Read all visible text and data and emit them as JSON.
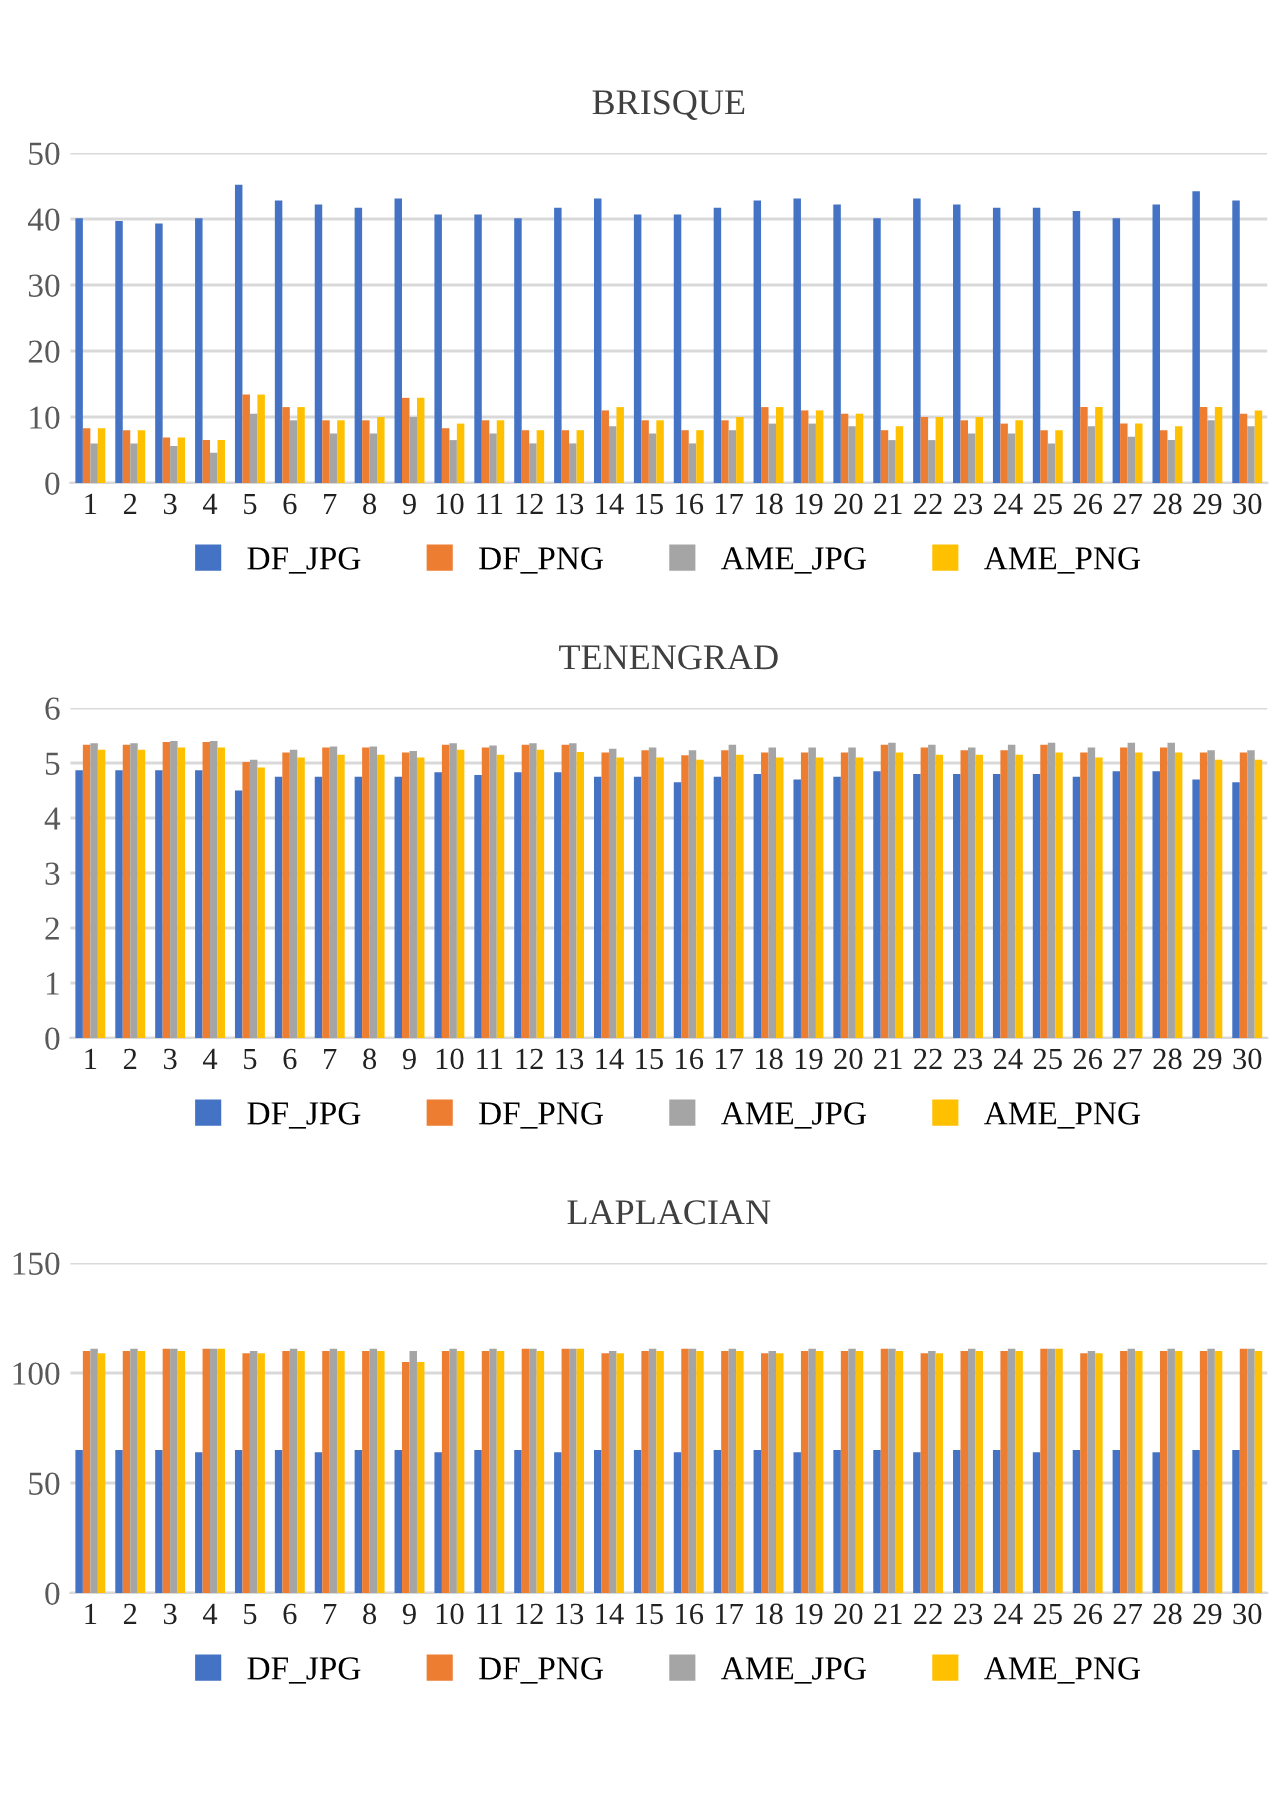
{
  "chart_data": [
    {
      "type": "bar",
      "title": "BRISQUE",
      "categories": [
        "1",
        "2",
        "3",
        "4",
        "5",
        "6",
        "7",
        "8",
        "9",
        "10",
        "11",
        "12",
        "13",
        "14",
        "15",
        "16",
        "17",
        "18",
        "19",
        "20",
        "21",
        "22",
        "23",
        "24",
        "25",
        "26",
        "27",
        "28",
        "29",
        "30"
      ],
      "ylim": [
        0,
        50
      ],
      "yticks": [
        0,
        10,
        20,
        30,
        40,
        50
      ],
      "grid": "y",
      "legend": "bottom",
      "series": [
        {
          "name": "DF_JPG",
          "color": "#4472c4",
          "values": [
            40.1,
            39.7,
            39.3,
            40.1,
            45.2,
            42.8,
            42.2,
            41.7,
            43.1,
            40.7,
            40.7,
            40.1,
            41.7,
            43.1,
            40.7,
            40.7,
            41.7,
            42.8,
            43.1,
            42.2,
            40.1,
            43.1,
            42.2,
            41.7,
            41.7,
            41.2,
            40.1,
            42.2,
            44.2,
            42.8
          ]
        },
        {
          "name": "DF_PNG",
          "color": "#ed7d31",
          "values": [
            8.3,
            8,
            6.9,
            6.5,
            13.4,
            11.5,
            9.5,
            9.5,
            12.9,
            8.3,
            9.5,
            8,
            8,
            11,
            9.5,
            8,
            9.5,
            11.5,
            11,
            10.5,
            8,
            10,
            9.5,
            9,
            8,
            11.5,
            9,
            8,
            11.5,
            10.5
          ]
        },
        {
          "name": "AME_JPG",
          "color": "#a5a5a5",
          "values": [
            6,
            6,
            5.6,
            4.6,
            10.5,
            9.5,
            7.5,
            7.5,
            10,
            6.5,
            7.5,
            6,
            6,
            8.6,
            7.5,
            6,
            8,
            9,
            9,
            8.6,
            6.5,
            6.5,
            7.5,
            7.5,
            6,
            8.6,
            7,
            6.5,
            9.5,
            8.6
          ]
        },
        {
          "name": "AME_PNG",
          "color": "#ffc000",
          "values": [
            8.3,
            8,
            6.9,
            6.5,
            13.4,
            11.5,
            9.5,
            10,
            12.9,
            9,
            9.5,
            8,
            8,
            11.5,
            9.5,
            8,
            10,
            11.5,
            11,
            10.5,
            8.6,
            10,
            10,
            9.5,
            8,
            11.5,
            9,
            8.6,
            11.5,
            11
          ]
        }
      ]
    },
    {
      "type": "bar",
      "title": "TENENGRAD",
      "categories": [
        "1",
        "2",
        "3",
        "4",
        "5",
        "6",
        "7",
        "8",
        "9",
        "10",
        "11",
        "12",
        "13",
        "14",
        "15",
        "16",
        "17",
        "18",
        "19",
        "20",
        "21",
        "22",
        "23",
        "24",
        "25",
        "26",
        "27",
        "28",
        "29",
        "30"
      ],
      "ylim": [
        0,
        6
      ],
      "yticks": [
        0,
        1,
        2,
        3,
        4,
        5,
        6
      ],
      "grid": "y",
      "legend": "bottom",
      "series": [
        {
          "name": "DF_JPG",
          "color": "#4472c4",
          "values": [
            4.87,
            4.87,
            4.87,
            4.87,
            4.5,
            4.75,
            4.75,
            4.75,
            4.75,
            4.83,
            4.78,
            4.83,
            4.83,
            4.75,
            4.75,
            4.65,
            4.75,
            4.8,
            4.7,
            4.75,
            4.85,
            4.8,
            4.8,
            4.8,
            4.8,
            4.75,
            4.85,
            4.85,
            4.7,
            4.65
          ]
        },
        {
          "name": "DF_PNG",
          "color": "#ed7d31",
          "values": [
            5.33,
            5.33,
            5.38,
            5.38,
            5.02,
            5.19,
            5.28,
            5.28,
            5.19,
            5.33,
            5.28,
            5.33,
            5.33,
            5.19,
            5.23,
            5.14,
            5.23,
            5.19,
            5.19,
            5.19,
            5.33,
            5.28,
            5.23,
            5.23,
            5.33,
            5.19,
            5.28,
            5.28,
            5.19,
            5.19
          ]
        },
        {
          "name": "AME_JPG",
          "color": "#a5a5a5",
          "values": [
            5.36,
            5.36,
            5.4,
            5.4,
            5.06,
            5.24,
            5.3,
            5.3,
            5.22,
            5.36,
            5.32,
            5.36,
            5.36,
            5.26,
            5.28,
            5.23,
            5.33,
            5.28,
            5.28,
            5.28,
            5.37,
            5.33,
            5.28,
            5.33,
            5.37,
            5.28,
            5.37,
            5.37,
            5.23,
            5.23
          ]
        },
        {
          "name": "AME_PNG",
          "color": "#ffc000",
          "values": [
            5.24,
            5.24,
            5.28,
            5.28,
            4.92,
            5.1,
            5.15,
            5.15,
            5.1,
            5.24,
            5.15,
            5.24,
            5.2,
            5.1,
            5.1,
            5.06,
            5.15,
            5.1,
            5.1,
            5.1,
            5.19,
            5.15,
            5.15,
            5.15,
            5.19,
            5.1,
            5.19,
            5.19,
            5.06,
            5.06
          ]
        }
      ]
    },
    {
      "type": "bar",
      "title": "LAPLACIAN",
      "categories": [
        "1",
        "2",
        "3",
        "4",
        "5",
        "6",
        "7",
        "8",
        "9",
        "10",
        "11",
        "12",
        "13",
        "14",
        "15",
        "16",
        "17",
        "18",
        "19",
        "20",
        "21",
        "22",
        "23",
        "24",
        "25",
        "26",
        "27",
        "28",
        "29",
        "30"
      ],
      "ylim": [
        0,
        150
      ],
      "yticks": [
        0,
        50,
        100,
        150
      ],
      "grid": "y",
      "legend": "bottom",
      "series": [
        {
          "name": "DF_JPG",
          "color": "#4472c4",
          "values": [
            65,
            65,
            65,
            64,
            65,
            65,
            64,
            65,
            65,
            64,
            65,
            65,
            64,
            65,
            65,
            64,
            65,
            65,
            64,
            65,
            65,
            64,
            65,
            65,
            64,
            65,
            65,
            64,
            65,
            65
          ]
        },
        {
          "name": "DF_PNG",
          "color": "#ed7d31",
          "values": [
            110,
            110,
            111,
            111,
            109,
            110,
            110,
            110,
            105,
            110,
            110,
            111,
            111,
            109,
            110,
            111,
            110,
            109,
            110,
            110,
            111,
            109,
            110,
            110,
            111,
            109,
            110,
            110,
            110,
            111
          ]
        },
        {
          "name": "AME_JPG",
          "color": "#a5a5a5",
          "values": [
            111,
            111,
            111,
            111,
            110,
            111,
            111,
            111,
            110,
            111,
            111,
            111,
            111,
            110,
            111,
            111,
            111,
            110,
            111,
            111,
            111,
            110,
            111,
            111,
            111,
            110,
            111,
            111,
            111,
            111
          ]
        },
        {
          "name": "AME_PNG",
          "color": "#ffc000",
          "values": [
            109,
            110,
            110,
            111,
            109,
            110,
            110,
            110,
            105,
            110,
            110,
            110,
            111,
            109,
            110,
            110,
            110,
            109,
            110,
            110,
            110,
            109,
            110,
            110,
            111,
            109,
            110,
            110,
            110,
            110
          ]
        }
      ]
    }
  ]
}
